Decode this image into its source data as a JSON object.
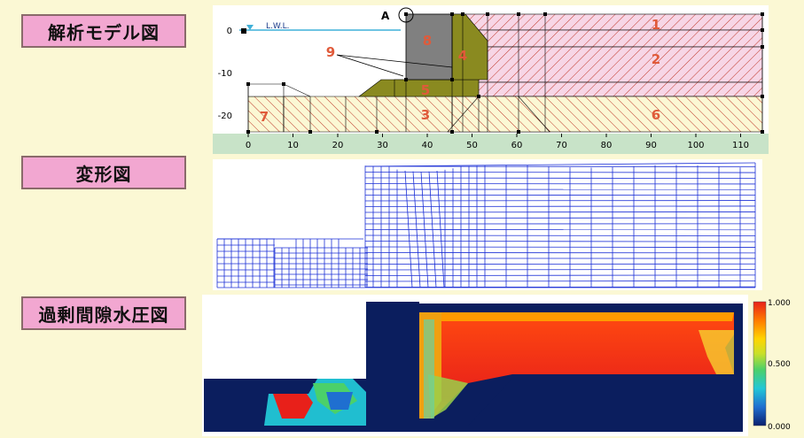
{
  "labels": {
    "model": "解析モデル図",
    "deformation": "変形図",
    "pore_pressure": "過剰間隙水圧図"
  },
  "model": {
    "point_label": "A",
    "water_level_label": "L.W.L.",
    "y_ticks": [
      "0",
      "-10",
      "-20"
    ],
    "x_ticks": [
      "0",
      "10",
      "20",
      "30",
      "40",
      "50",
      "60",
      "70",
      "80",
      "90",
      "100",
      "110"
    ],
    "regions": [
      "1",
      "2",
      "3",
      "4",
      "5",
      "6",
      "7",
      "8",
      "9"
    ]
  },
  "colorbar": {
    "max": "1.000",
    "mid": "0.500",
    "min": "0.000",
    "colors": [
      "#0a1f6e",
      "#1f6fd0",
      "#22c7d6",
      "#4bd06a",
      "#c8e02a",
      "#ffd400",
      "#ff7b00",
      "#e8201a"
    ]
  },
  "colors": {
    "background": "#fbf8d4",
    "label_bg": "#f2a7d1",
    "hatch": "#c0392b",
    "caisson": "#808080",
    "mound": "#8a8a20",
    "mesh": "#1b2fd6",
    "ground": "#0b1e5e"
  }
}
